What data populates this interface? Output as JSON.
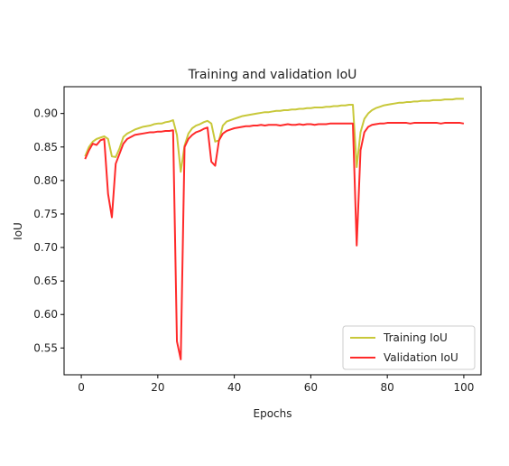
{
  "chart_data": {
    "type": "line",
    "title": "Training and validation IoU",
    "xlabel": "Epochs",
    "ylabel": "IoU",
    "xlim": [
      -4.5,
      104.5
    ],
    "ylim": [
      0.51,
      0.94
    ],
    "xticks": [
      0,
      20,
      40,
      60,
      80,
      100
    ],
    "yticks": [
      0.55,
      0.6,
      0.65,
      0.7,
      0.75,
      0.8,
      0.85,
      0.9
    ],
    "grid": false,
    "legend_position": "lower-right",
    "series": [
      {
        "name": "Training IoU",
        "color": "#c8c83a",
        "x": [
          1,
          2,
          3,
          4,
          5,
          6,
          7,
          8,
          9,
          10,
          11,
          12,
          13,
          14,
          15,
          16,
          17,
          18,
          19,
          20,
          21,
          22,
          23,
          24,
          25,
          26,
          27,
          28,
          29,
          30,
          31,
          32,
          33,
          34,
          35,
          36,
          37,
          38,
          39,
          40,
          41,
          42,
          43,
          44,
          45,
          46,
          47,
          48,
          49,
          50,
          51,
          52,
          53,
          54,
          55,
          56,
          57,
          58,
          59,
          60,
          61,
          62,
          63,
          64,
          65,
          66,
          67,
          68,
          69,
          70,
          71,
          72,
          73,
          74,
          75,
          76,
          77,
          78,
          79,
          80,
          81,
          82,
          83,
          84,
          85,
          86,
          87,
          88,
          89,
          90,
          91,
          92,
          93,
          94,
          95,
          96,
          97,
          98,
          99,
          100
        ],
        "values": [
          0.836,
          0.85,
          0.858,
          0.862,
          0.864,
          0.866,
          0.862,
          0.836,
          0.835,
          0.848,
          0.865,
          0.87,
          0.873,
          0.876,
          0.878,
          0.88,
          0.881,
          0.882,
          0.884,
          0.885,
          0.885,
          0.887,
          0.888,
          0.89,
          0.868,
          0.813,
          0.852,
          0.87,
          0.878,
          0.882,
          0.884,
          0.887,
          0.889,
          0.885,
          0.858,
          0.86,
          0.882,
          0.888,
          0.89,
          0.892,
          0.894,
          0.896,
          0.897,
          0.898,
          0.899,
          0.9,
          0.901,
          0.902,
          0.902,
          0.903,
          0.904,
          0.904,
          0.905,
          0.905,
          0.906,
          0.906,
          0.907,
          0.907,
          0.908,
          0.908,
          0.909,
          0.909,
          0.909,
          0.91,
          0.91,
          0.911,
          0.911,
          0.912,
          0.912,
          0.913,
          0.913,
          0.82,
          0.872,
          0.892,
          0.9,
          0.905,
          0.908,
          0.91,
          0.912,
          0.913,
          0.914,
          0.915,
          0.916,
          0.916,
          0.917,
          0.917,
          0.918,
          0.918,
          0.919,
          0.919,
          0.919,
          0.92,
          0.92,
          0.92,
          0.921,
          0.921,
          0.921,
          0.922,
          0.922,
          0.922
        ]
      },
      {
        "name": "Validation IoU",
        "color": "#ff2a2a",
        "x": [
          1,
          2,
          3,
          4,
          5,
          6,
          7,
          8,
          9,
          10,
          11,
          12,
          13,
          14,
          15,
          16,
          17,
          18,
          19,
          20,
          21,
          22,
          23,
          24,
          25,
          26,
          27,
          28,
          29,
          30,
          31,
          32,
          33,
          34,
          35,
          36,
          37,
          38,
          39,
          40,
          41,
          42,
          43,
          44,
          45,
          46,
          47,
          48,
          49,
          50,
          51,
          52,
          53,
          54,
          55,
          56,
          57,
          58,
          59,
          60,
          61,
          62,
          63,
          64,
          65,
          66,
          67,
          68,
          69,
          70,
          71,
          72,
          73,
          74,
          75,
          76,
          77,
          78,
          79,
          80,
          81,
          82,
          83,
          84,
          85,
          86,
          87,
          88,
          89,
          90,
          91,
          92,
          93,
          94,
          95,
          96,
          97,
          98,
          99,
          100
        ],
        "values": [
          0.832,
          0.845,
          0.855,
          0.853,
          0.86,
          0.862,
          0.78,
          0.745,
          0.825,
          0.84,
          0.855,
          0.862,
          0.865,
          0.868,
          0.869,
          0.87,
          0.871,
          0.872,
          0.872,
          0.873,
          0.873,
          0.874,
          0.874,
          0.875,
          0.56,
          0.533,
          0.85,
          0.862,
          0.868,
          0.872,
          0.874,
          0.877,
          0.879,
          0.828,
          0.822,
          0.86,
          0.87,
          0.874,
          0.876,
          0.878,
          0.879,
          0.88,
          0.881,
          0.881,
          0.882,
          0.882,
          0.883,
          0.882,
          0.883,
          0.883,
          0.883,
          0.882,
          0.883,
          0.884,
          0.883,
          0.883,
          0.884,
          0.883,
          0.884,
          0.884,
          0.883,
          0.884,
          0.884,
          0.884,
          0.885,
          0.885,
          0.885,
          0.885,
          0.885,
          0.885,
          0.885,
          0.703,
          0.845,
          0.872,
          0.88,
          0.883,
          0.884,
          0.885,
          0.885,
          0.886,
          0.886,
          0.886,
          0.886,
          0.886,
          0.886,
          0.885,
          0.886,
          0.886,
          0.886,
          0.886,
          0.886,
          0.886,
          0.886,
          0.885,
          0.886,
          0.886,
          0.886,
          0.886,
          0.886,
          0.885
        ]
      }
    ]
  }
}
